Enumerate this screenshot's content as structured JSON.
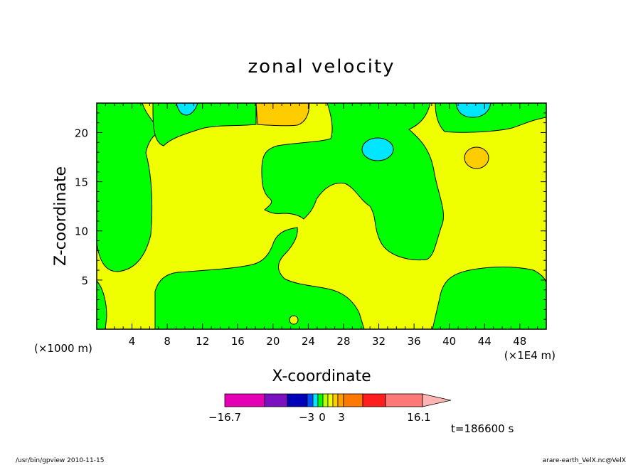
{
  "chart_data": {
    "type": "heatmap",
    "title": "zonal velocity",
    "xlabel": "X-coordinate",
    "ylabel": "Z-coordinate",
    "x_unit_left": "(×1000 m)",
    "x_unit_right": "(×1E4 m)",
    "xlim": [
      0,
      51
    ],
    "ylim": [
      0,
      23
    ],
    "x_ticks": [
      4,
      8,
      12,
      16,
      20,
      24,
      28,
      32,
      36,
      40,
      44,
      48
    ],
    "y_ticks": [
      5,
      10,
      15,
      20
    ],
    "colorbar": {
      "labels": [
        "−16.7",
        "−3",
        "0",
        "3",
        "16.1"
      ],
      "colors": [
        "#e600b4",
        "#7a10c0",
        "#0000b8",
        "#0050ff",
        "#00e6ff",
        "#00ff00",
        "#b4ff00",
        "#f0ff00",
        "#ffcc00",
        "#ffa000",
        "#ff7800",
        "#ff1e1e",
        "#ff7878",
        "#ffb4b4"
      ]
    },
    "time_label": "t=186600 s",
    "footer_left": "/usr/bin/gpview   2010-11-15",
    "footer_right": "arare-earth_VelX.nc@VelX"
  }
}
